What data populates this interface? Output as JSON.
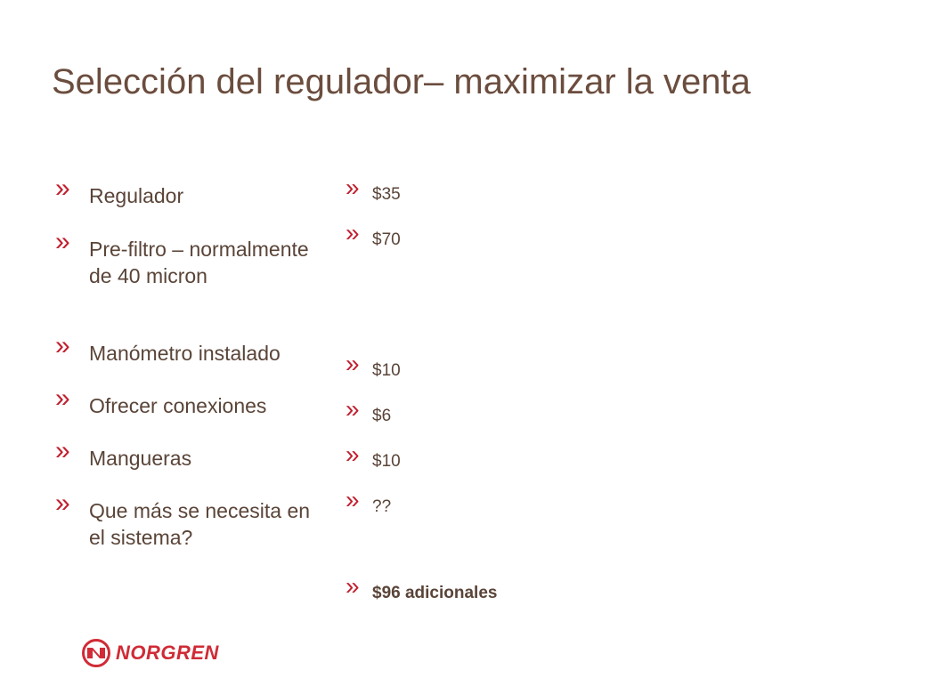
{
  "slide": {
    "title": "Selección del regulador– maximizar la venta"
  },
  "left_items": [
    {
      "text": "Regulador"
    },
    {
      "text": "Pre-filtro – normalmente de 40 micron"
    },
    {
      "text": "Manómetro instalado"
    },
    {
      "text": "Ofrecer conexiones"
    },
    {
      "text": "Mangueras"
    },
    {
      "text": "Que más se necesita en el sistema?"
    }
  ],
  "right_items": [
    {
      "text": "$35"
    },
    {
      "text": "$70"
    },
    {
      "text": "$10"
    },
    {
      "text": "$6"
    },
    {
      "text": "$10"
    },
    {
      "text": "??"
    },
    {
      "text": "$96 adicionales"
    }
  ],
  "bullet_glyph": "»",
  "logo": {
    "wordmark": "NORGREN",
    "color": "#d02b36"
  },
  "colors": {
    "title": "#6b4d3e",
    "text": "#5a4438",
    "bullet": "#c0202f"
  }
}
